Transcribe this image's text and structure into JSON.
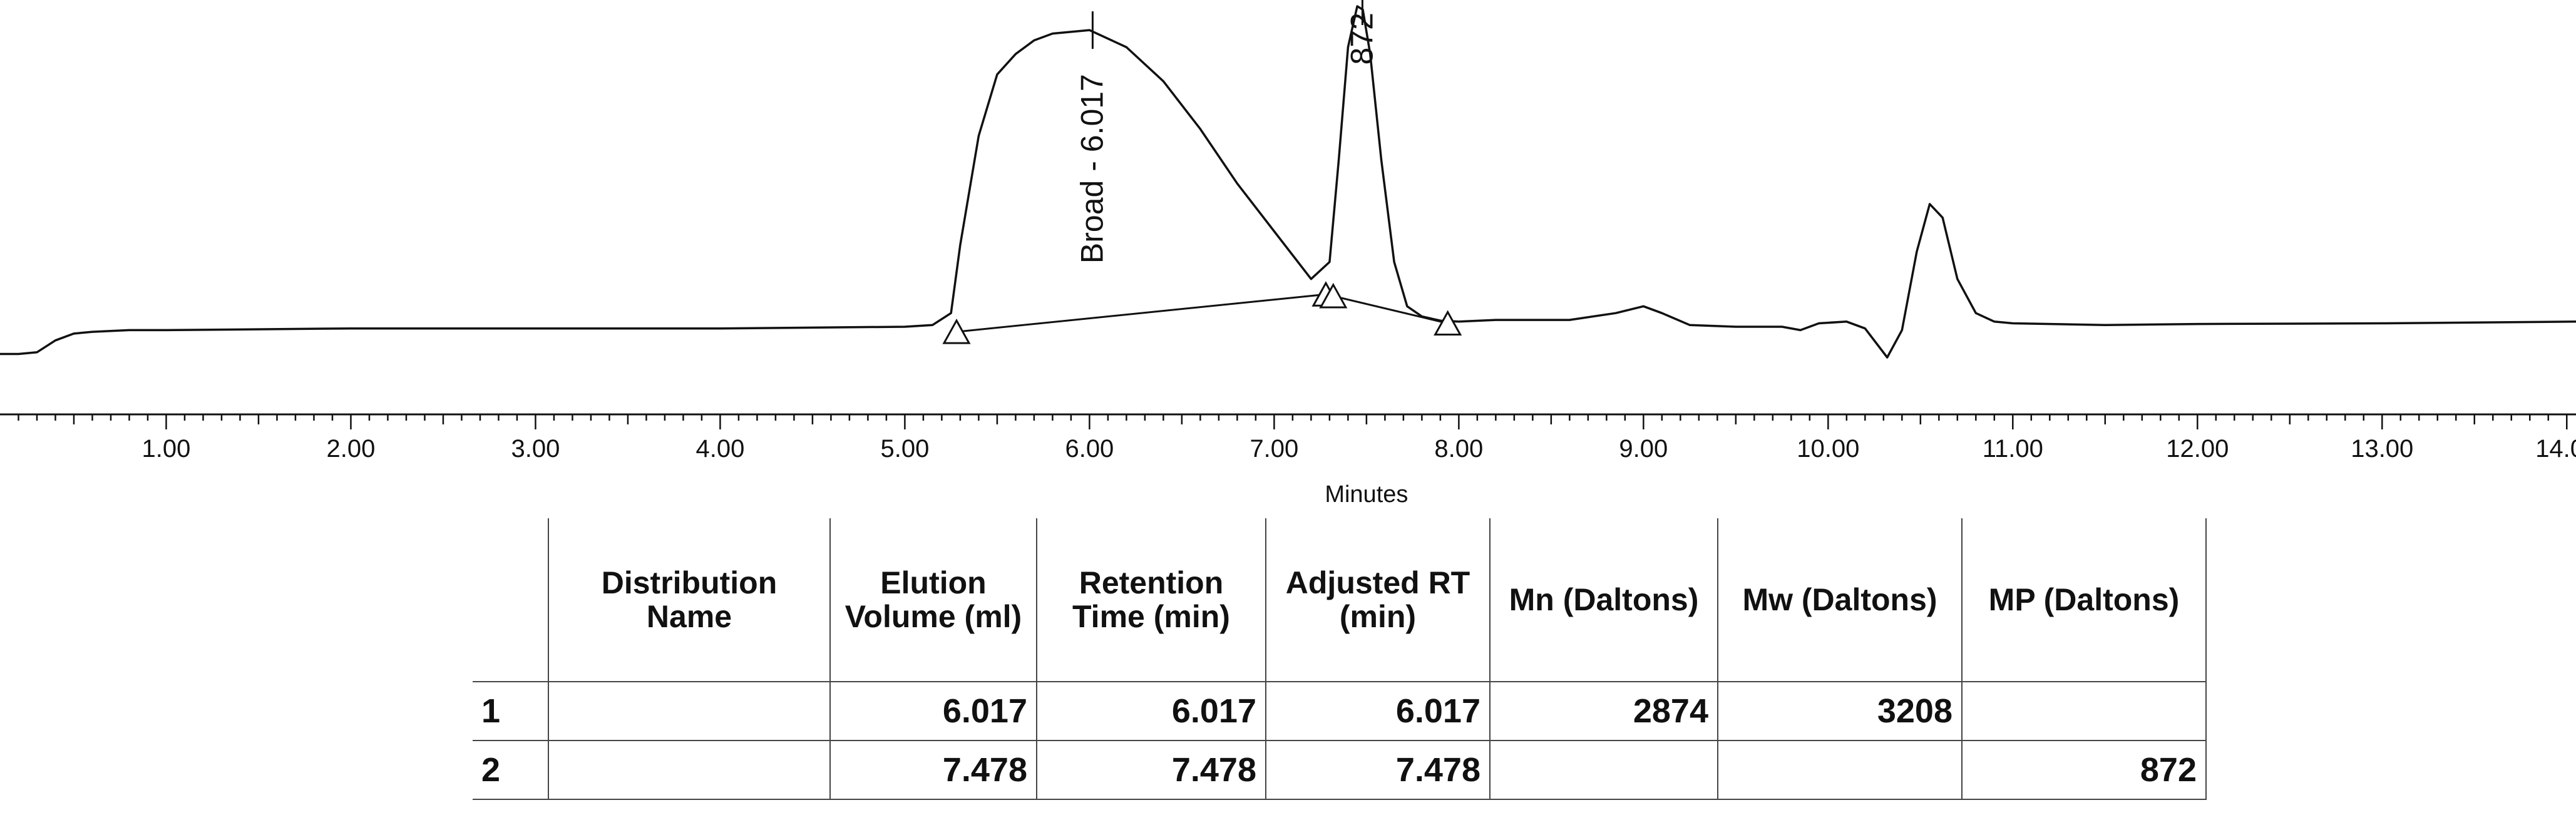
{
  "chart_data": {
    "type": "line",
    "xlabel": "Minutes",
    "xlim": [
      0.1,
      14.05
    ],
    "ylim": [
      -0.12,
      1.0
    ],
    "x_ticks": [
      "1.00",
      "2.00",
      "3.00",
      "4.00",
      "5.00",
      "6.00",
      "7.00",
      "8.00",
      "9.00",
      "10.00",
      "11.00",
      "12.00",
      "13.00",
      "14.00"
    ],
    "x_tick_values": [
      1,
      2,
      3,
      4,
      5,
      6,
      7,
      8,
      9,
      10,
      11,
      12,
      13,
      14
    ],
    "series": [
      {
        "x": [
          0.1,
          0.2,
          0.3,
          0.4,
          0.5,
          0.6,
          0.8,
          1.0,
          2.0,
          3.0,
          4.0,
          5.0,
          5.15,
          5.25,
          5.3,
          5.4,
          5.5,
          5.6,
          5.7,
          5.8,
          6.0,
          6.2,
          6.4,
          6.6,
          6.8,
          7.0,
          7.2,
          7.3,
          7.35,
          7.4,
          7.45,
          7.48,
          7.52,
          7.58,
          7.65,
          7.72,
          7.8,
          7.9,
          8.0,
          8.2,
          8.6,
          8.85,
          9.0,
          9.1,
          9.25,
          9.5,
          9.75,
          9.85,
          9.95,
          10.1,
          10.2,
          10.32,
          10.4,
          10.48,
          10.55,
          10.62,
          10.7,
          10.8,
          10.9,
          11.0,
          11.5,
          12.0,
          13.0,
          14.05
        ],
        "y": [
          -0.02,
          -0.02,
          -0.015,
          0.02,
          0.04,
          0.045,
          0.05,
          0.05,
          0.055,
          0.055,
          0.055,
          0.06,
          0.065,
          0.1,
          0.3,
          0.62,
          0.8,
          0.86,
          0.9,
          0.92,
          0.93,
          0.88,
          0.78,
          0.64,
          0.48,
          0.34,
          0.2,
          0.25,
          0.55,
          0.88,
          1.0,
          0.99,
          0.86,
          0.55,
          0.25,
          0.12,
          0.09,
          0.078,
          0.075,
          0.08,
          0.08,
          0.1,
          0.12,
          0.1,
          0.065,
          0.06,
          0.06,
          0.05,
          0.07,
          0.075,
          0.055,
          -0.03,
          0.05,
          0.28,
          0.42,
          0.38,
          0.2,
          0.1,
          0.075,
          0.07,
          0.065,
          0.068,
          0.07,
          0.075
        ]
      }
    ],
    "baselines": [
      {
        "x": [
          5.28,
          7.28
        ],
        "y": [
          0.045,
          0.155
        ]
      },
      {
        "x": [
          7.32,
          7.94
        ],
        "y": [
          0.15,
          0.07
        ]
      }
    ],
    "markers": [
      {
        "x": 5.28,
        "y": 0.045
      },
      {
        "x": 7.28,
        "y": 0.155
      },
      {
        "x": 7.32,
        "y": 0.15
      },
      {
        "x": 7.94,
        "y": 0.07
      }
    ],
    "peak_labels": [
      {
        "text": "Broad - 6.017",
        "x": 6.017,
        "y": 0.93
      },
      {
        "text": "872",
        "x": 7.478,
        "y": 1.0
      }
    ]
  },
  "table": {
    "headers": [
      "",
      "Distribution Name",
      "Elution Volume (ml)",
      "Retention Time (min)",
      "Adjusted RT (min)",
      "Mn (Daltons)",
      "Mw (Daltons)",
      "MP (Daltons)"
    ],
    "rows": [
      [
        "1",
        "",
        "6.017",
        "6.017",
        "6.017",
        "2874",
        "3208",
        ""
      ],
      [
        "2",
        "",
        "7.478",
        "7.478",
        "7.478",
        "",
        "",
        "872"
      ]
    ]
  }
}
